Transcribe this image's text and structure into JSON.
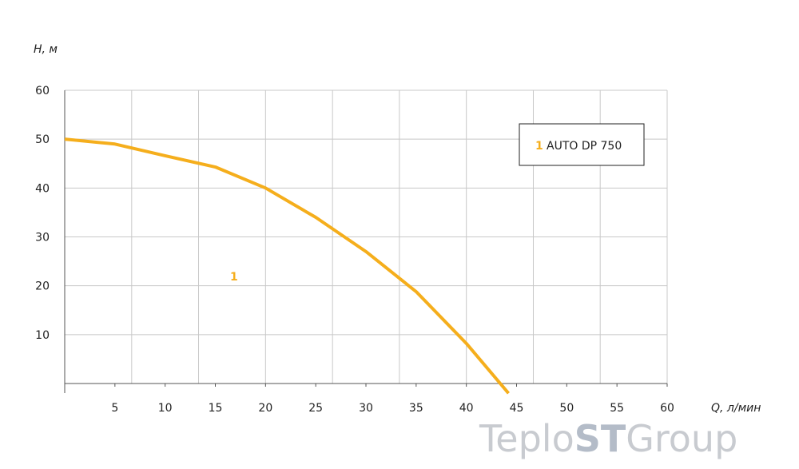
{
  "chart_data": {
    "type": "line",
    "y_label": "H, м",
    "x_label": "Q, л/мин",
    "xlim": [
      0,
      60
    ],
    "ylim": [
      0,
      60
    ],
    "xticks": [
      5,
      10,
      15,
      20,
      25,
      30,
      35,
      40,
      45,
      50,
      55,
      60
    ],
    "yticks": [
      10,
      20,
      30,
      40,
      50,
      60
    ],
    "xgrid": [
      6.67,
      13.33,
      20,
      26.67,
      33.33,
      40,
      46.67,
      53.33,
      60
    ],
    "grid": true,
    "series": [
      {
        "name": "AUTO DP 750",
        "label": "1",
        "color": "#f5ae1c",
        "x": [
          0,
          5,
          10,
          15,
          20,
          25,
          30,
          35,
          40,
          44.2
        ],
        "values": [
          50,
          49,
          46.6,
          44.3,
          40,
          34,
          27,
          18.8,
          8.2,
          -2
        ]
      }
    ],
    "watermark": [
      "Teplo",
      "ST",
      "Group"
    ]
  }
}
